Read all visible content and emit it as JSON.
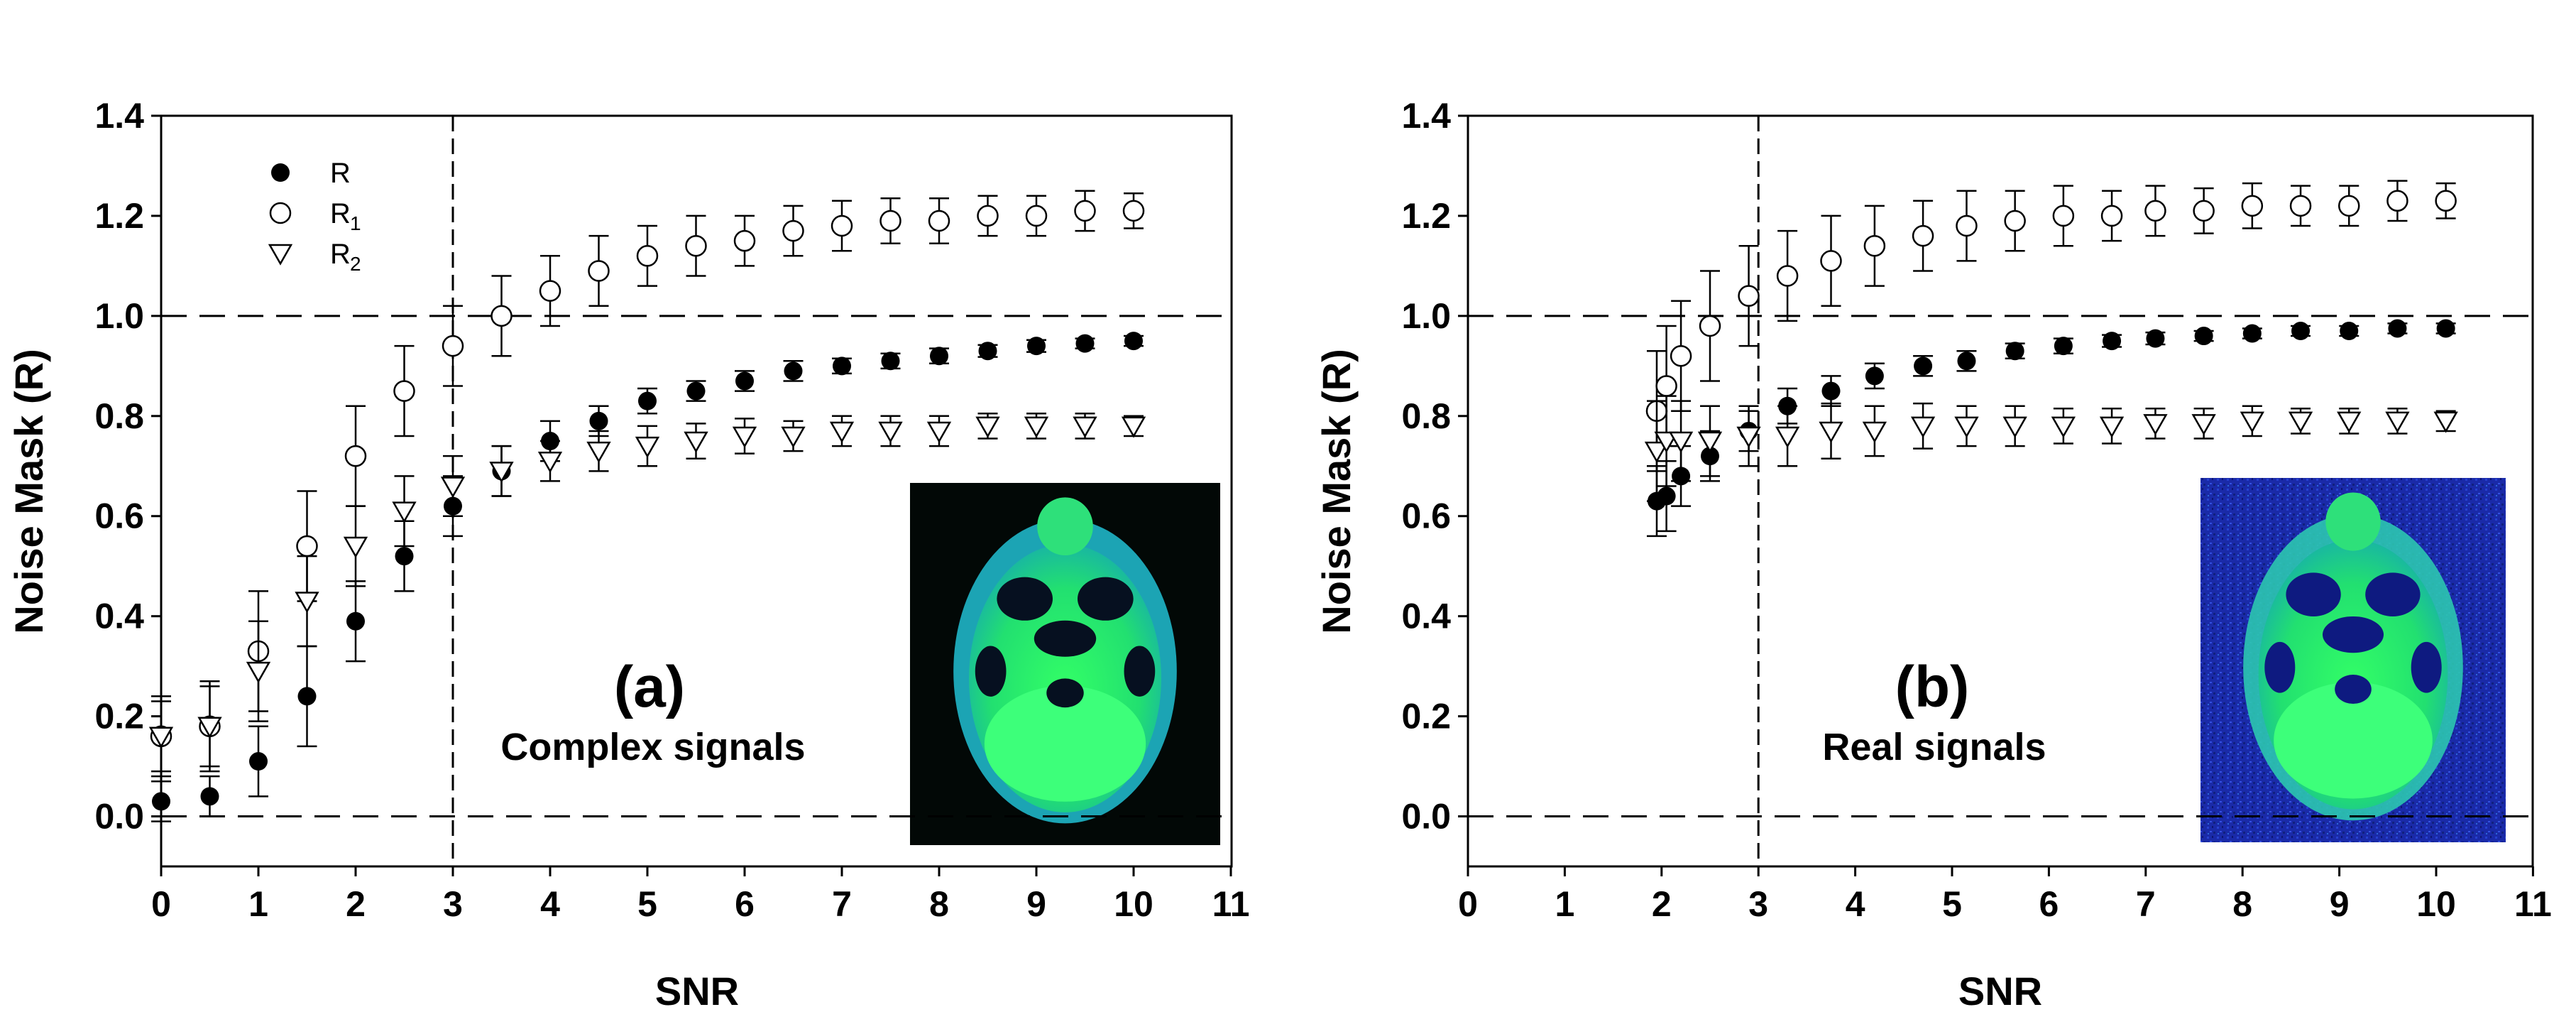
{
  "chart_data": [
    {
      "type": "scatter",
      "panel_label": "(a)",
      "annotation": "Complex signals",
      "xlabel": "SNR",
      "ylabel": "Noise Mask (R)",
      "xlim": [
        0,
        11
      ],
      "ylim": [
        -0.1,
        1.4
      ],
      "xticks": [
        "0",
        "1",
        "2",
        "3",
        "4",
        "5",
        "6",
        "7",
        "8",
        "9",
        "10",
        "11"
      ],
      "yticks": [
        "0.0",
        "0.2",
        "0.4",
        "0.6",
        "0.8",
        "1.0",
        "1.2",
        "1.4"
      ],
      "reference_lines": {
        "horizontal": [
          0.0,
          1.0
        ],
        "vertical": [
          3
        ]
      },
      "legend": {
        "position": "top-left",
        "entries": [
          {
            "symbol": "filled-circle",
            "label": "R",
            "subscript": ""
          },
          {
            "symbol": "open-circle",
            "label": "R",
            "subscript": "1"
          },
          {
            "symbol": "open-triangle-down",
            "label": "R",
            "subscript": "2"
          }
        ]
      },
      "inset_image": "brain-mri-dark-background",
      "series": [
        {
          "name": "R",
          "marker": "filled-circle",
          "x": [
            0,
            0.5,
            1,
            1.5,
            2,
            2.5,
            3,
            3.5,
            4,
            4.5,
            5,
            5.5,
            6,
            6.5,
            7,
            7.5,
            8,
            8.5,
            9,
            9.5,
            10
          ],
          "y": [
            0.03,
            0.04,
            0.11,
            0.24,
            0.39,
            0.52,
            0.62,
            0.69,
            0.75,
            0.79,
            0.83,
            0.85,
            0.87,
            0.89,
            0.9,
            0.91,
            0.92,
            0.93,
            0.94,
            0.945,
            0.95
          ],
          "err": [
            0.04,
            0.04,
            0.07,
            0.1,
            0.08,
            0.07,
            0.06,
            0.05,
            0.04,
            0.03,
            0.025,
            0.02,
            0.02,
            0.02,
            0.015,
            0.015,
            0.015,
            0.012,
            0.012,
            0.01,
            0.01
          ]
        },
        {
          "name": "R1",
          "marker": "open-circle",
          "x": [
            0,
            0.5,
            1,
            1.5,
            2,
            2.5,
            3,
            3.5,
            4,
            4.5,
            5,
            5.5,
            6,
            6.5,
            7,
            7.5,
            8,
            8.5,
            9,
            9.5,
            10
          ],
          "y": [
            0.16,
            0.18,
            0.33,
            0.54,
            0.72,
            0.85,
            0.94,
            1.0,
            1.05,
            1.09,
            1.12,
            1.14,
            1.15,
            1.17,
            1.18,
            1.19,
            1.19,
            1.2,
            1.2,
            1.21,
            1.21
          ],
          "err": [
            0.08,
            0.09,
            0.12,
            0.11,
            0.1,
            0.09,
            0.08,
            0.08,
            0.07,
            0.07,
            0.06,
            0.06,
            0.05,
            0.05,
            0.05,
            0.045,
            0.045,
            0.04,
            0.04,
            0.04,
            0.035
          ]
        },
        {
          "name": "R2",
          "marker": "open-triangle-down",
          "x": [
            0,
            0.5,
            1,
            1.5,
            2,
            2.5,
            3,
            3.5,
            4,
            4.5,
            5,
            5.5,
            6,
            6.5,
            7,
            7.5,
            8,
            8.5,
            9,
            9.5,
            10
          ],
          "y": [
            0.16,
            0.18,
            0.29,
            0.43,
            0.54,
            0.61,
            0.66,
            0.69,
            0.71,
            0.73,
            0.74,
            0.75,
            0.76,
            0.76,
            0.77,
            0.77,
            0.77,
            0.78,
            0.78,
            0.78,
            0.78
          ],
          "err": [
            0.07,
            0.08,
            0.1,
            0.09,
            0.08,
            0.07,
            0.06,
            0.05,
            0.04,
            0.04,
            0.04,
            0.035,
            0.035,
            0.03,
            0.03,
            0.03,
            0.03,
            0.025,
            0.025,
            0.025,
            0.02
          ]
        }
      ]
    },
    {
      "type": "scatter",
      "panel_label": "(b)",
      "annotation": "Real signals",
      "xlabel": "SNR",
      "ylabel": "Noise Mask (R)",
      "xlim": [
        0,
        11
      ],
      "ylim": [
        -0.1,
        1.4
      ],
      "xticks": [
        "0",
        "1",
        "2",
        "3",
        "4",
        "5",
        "6",
        "7",
        "8",
        "9",
        "10",
        "11"
      ],
      "yticks": [
        "0.0",
        "0.2",
        "0.4",
        "0.6",
        "0.8",
        "1.0",
        "1.2",
        "1.4"
      ],
      "reference_lines": {
        "horizontal": [
          0.0,
          1.0
        ],
        "vertical": [
          3
        ]
      },
      "inset_image": "brain-mri-noisy-blue-background",
      "series": [
        {
          "name": "R",
          "marker": "filled-circle",
          "x": [
            1.95,
            2.05,
            2.2,
            2.5,
            2.9,
            3.3,
            3.75,
            4.2,
            4.7,
            5.15,
            5.65,
            6.15,
            6.65,
            7.1,
            7.6,
            8.1,
            8.6,
            9.1,
            9.6,
            10.1
          ],
          "y": [
            0.63,
            0.64,
            0.68,
            0.72,
            0.77,
            0.82,
            0.85,
            0.88,
            0.9,
            0.91,
            0.93,
            0.94,
            0.95,
            0.955,
            0.96,
            0.965,
            0.97,
            0.97,
            0.975,
            0.975
          ],
          "err": [
            0.07,
            0.07,
            0.06,
            0.05,
            0.04,
            0.035,
            0.03,
            0.025,
            0.02,
            0.02,
            0.015,
            0.015,
            0.012,
            0.012,
            0.01,
            0.01,
            0.01,
            0.01,
            0.01,
            0.01
          ]
        },
        {
          "name": "R1",
          "marker": "open-circle",
          "x": [
            1.95,
            2.05,
            2.2,
            2.5,
            2.9,
            3.3,
            3.75,
            4.2,
            4.7,
            5.15,
            5.65,
            6.15,
            6.65,
            7.1,
            7.6,
            8.1,
            8.6,
            9.1,
            9.6,
            10.1
          ],
          "y": [
            0.81,
            0.86,
            0.92,
            0.98,
            1.04,
            1.08,
            1.11,
            1.14,
            1.16,
            1.18,
            1.19,
            1.2,
            1.2,
            1.21,
            1.21,
            1.22,
            1.22,
            1.22,
            1.23,
            1.23
          ],
          "err": [
            0.12,
            0.12,
            0.11,
            0.11,
            0.1,
            0.09,
            0.09,
            0.08,
            0.07,
            0.07,
            0.06,
            0.06,
            0.05,
            0.05,
            0.045,
            0.045,
            0.04,
            0.04,
            0.04,
            0.035
          ]
        },
        {
          "name": "R2",
          "marker": "open-triangle-down",
          "x": [
            1.95,
            2.05,
            2.2,
            2.5,
            2.9,
            3.3,
            3.75,
            4.2,
            4.7,
            5.15,
            5.65,
            6.15,
            6.65,
            7.1,
            7.6,
            8.1,
            8.6,
            9.1,
            9.6,
            10.1
          ],
          "y": [
            0.73,
            0.75,
            0.75,
            0.75,
            0.76,
            0.76,
            0.77,
            0.77,
            0.78,
            0.78,
            0.78,
            0.78,
            0.78,
            0.785,
            0.785,
            0.79,
            0.79,
            0.79,
            0.79,
            0.79
          ],
          "err": [
            0.1,
            0.09,
            0.08,
            0.07,
            0.06,
            0.06,
            0.055,
            0.05,
            0.045,
            0.04,
            0.04,
            0.035,
            0.035,
            0.03,
            0.03,
            0.03,
            0.025,
            0.025,
            0.025,
            0.02
          ]
        }
      ]
    }
  ]
}
